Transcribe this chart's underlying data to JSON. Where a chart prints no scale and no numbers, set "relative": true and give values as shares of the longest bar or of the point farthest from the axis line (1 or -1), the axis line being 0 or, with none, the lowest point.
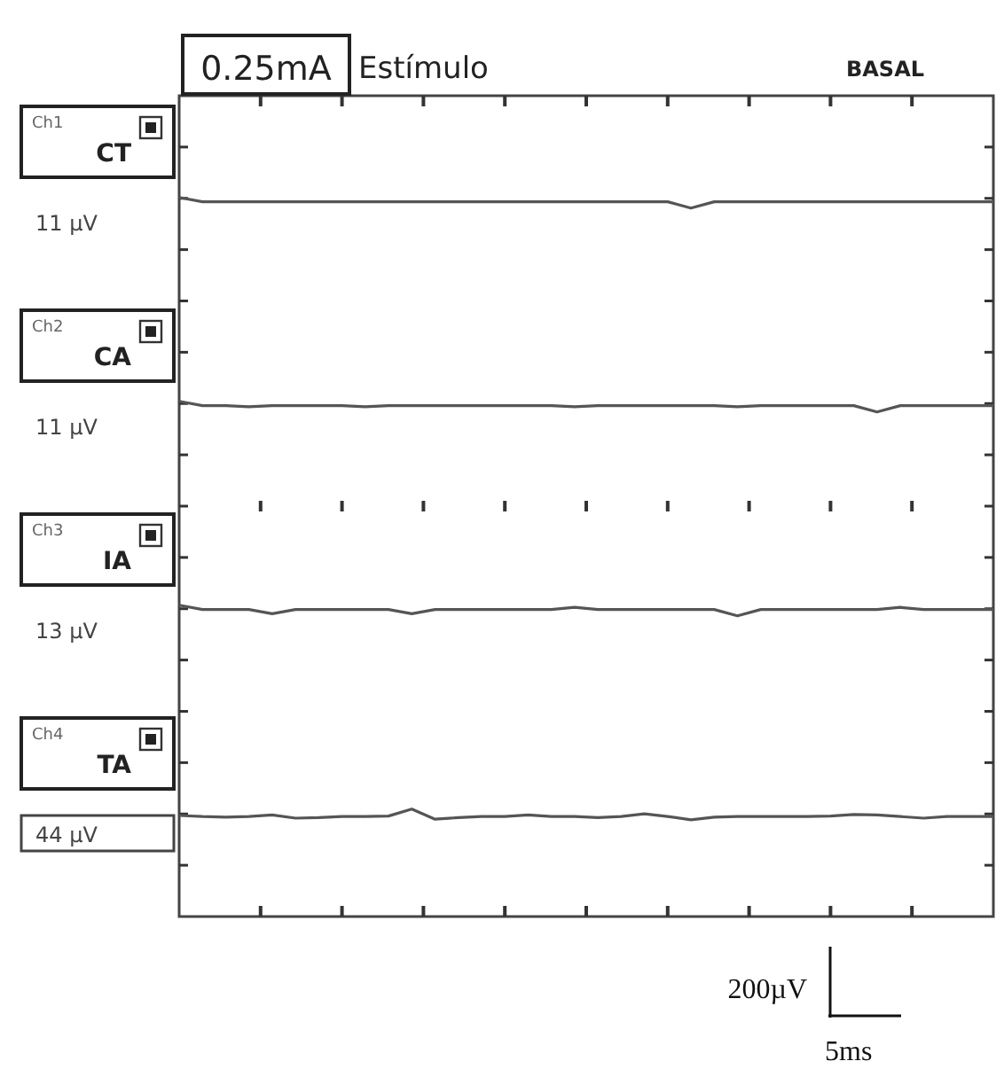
{
  "chart_data": [
    {
      "type": "other",
      "title": "Estímulo",
      "subtitle": "BASAL",
      "annotations": [
        "0.25mA"
      ]
    },
    {
      "type": "line",
      "relative": true,
      "categories": [
        null,
        null,
        null,
        null,
        null,
        null,
        null,
        null,
        null,
        null,
        null,
        null,
        null,
        null,
        null,
        null,
        null,
        null,
        null,
        null,
        null,
        null,
        null,
        null,
        null,
        null,
        null,
        null,
        null,
        null,
        null,
        null,
        null,
        null,
        null,
        null
      ],
      "series": [
        {
          "name": "CT",
          "color": "#555555",
          "values": [
            1,
            0.6,
            0.6,
            0.6,
            0.6,
            0.6,
            0.6,
            0.6,
            0.6,
            0.6,
            0.6,
            0.6,
            0.6,
            0.6,
            0.6,
            0.6,
            0.6,
            0.6,
            0.6,
            0.6,
            0.6,
            0.6,
            0,
            0.6,
            0.6,
            0.6,
            0.6,
            0.6,
            0.6,
            0.6,
            0.6,
            0.6,
            0.6,
            0.6,
            0.6,
            0.6
          ]
        }
      ],
      "annotations": [
        "Ch1",
        "11 µV"
      ]
    },
    {
      "type": "line",
      "relative": true,
      "categories": [
        null,
        null,
        null,
        null,
        null,
        null,
        null,
        null,
        null,
        null,
        null,
        null,
        null,
        null,
        null,
        null,
        null,
        null,
        null,
        null,
        null,
        null,
        null,
        null,
        null,
        null,
        null,
        null,
        null,
        null,
        null,
        null,
        null,
        null,
        null,
        null
      ],
      "series": [
        {
          "name": "CA",
          "color": "#555555",
          "values": [
            1,
            0.6,
            0.6,
            0.5,
            0.6,
            0.6,
            0.6,
            0.6,
            0.5,
            0.6,
            0.6,
            0.6,
            0.6,
            0.6,
            0.6,
            0.6,
            0.6,
            0.5,
            0.6,
            0.6,
            0.6,
            0.6,
            0.6,
            0.6,
            0.5,
            0.6,
            0.6,
            0.6,
            0.6,
            0.6,
            0,
            0.6,
            0.6,
            0.6,
            0.6,
            0.6
          ]
        }
      ],
      "annotations": [
        "Ch2",
        "11 µV"
      ]
    },
    {
      "type": "line",
      "relative": true,
      "categories": [
        null,
        null,
        null,
        null,
        null,
        null,
        null,
        null,
        null,
        null,
        null,
        null,
        null,
        null,
        null,
        null,
        null,
        null,
        null,
        null,
        null,
        null,
        null,
        null,
        null,
        null,
        null,
        null,
        null,
        null,
        null,
        null,
        null,
        null,
        null,
        null
      ],
      "series": [
        {
          "name": "IA",
          "color": "#555555",
          "values": [
            1,
            0.6,
            0.6,
            0.6,
            0.2,
            0.6,
            0.6,
            0.6,
            0.6,
            0.6,
            0.2,
            0.6,
            0.6,
            0.6,
            0.6,
            0.6,
            0.6,
            0.8,
            0.6,
            0.6,
            0.6,
            0.6,
            0.6,
            0.6,
            0,
            0.6,
            0.6,
            0.6,
            0.6,
            0.6,
            0.6,
            0.8,
            0.6,
            0.6,
            0.6,
            0.6
          ]
        }
      ],
      "annotations": [
        "Ch3",
        "13 µV"
      ]
    },
    {
      "type": "line",
      "relative": true,
      "categories": [
        null,
        null,
        null,
        null,
        null,
        null,
        null,
        null,
        null,
        null,
        null,
        null,
        null,
        null,
        null,
        null,
        null,
        null,
        null,
        null,
        null,
        null,
        null,
        null,
        null,
        null,
        null,
        null,
        null,
        null,
        null,
        null,
        null,
        null,
        null,
        null
      ],
      "series": [
        {
          "name": "TA",
          "color": "#555555",
          "values": [
            0.4,
            0.3,
            0.25,
            0.3,
            0.45,
            0.15,
            0.2,
            0.3,
            0.3,
            0.35,
            1,
            0.05,
            0.2,
            0.3,
            0.3,
            0.45,
            0.3,
            0.3,
            0.2,
            0.3,
            0.55,
            0.3,
            0,
            0.25,
            0.3,
            0.3,
            0.3,
            0.3,
            0.35,
            0.5,
            0.45,
            0.3,
            0.15,
            0.3,
            0.3,
            0.3
          ]
        }
      ],
      "annotations": [
        "Ch4",
        "44 µV"
      ]
    },
    {
      "type": "other",
      "annotations": [
        "200µV",
        "5ms"
      ]
    }
  ]
}
